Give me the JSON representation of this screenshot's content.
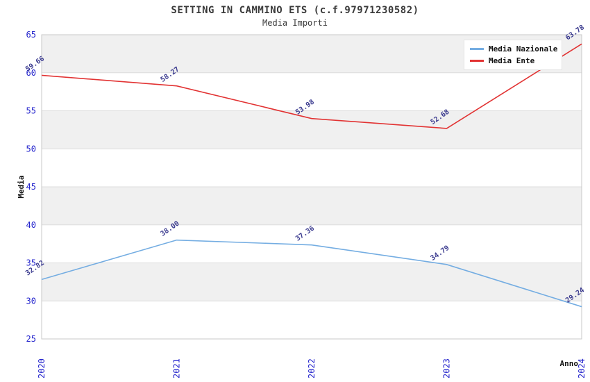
{
  "header": {
    "title": "SETTING IN CAMMINO ETS (c.f.97971230582)",
    "subtitle": "Media Importi"
  },
  "chart_data": {
    "type": "line",
    "categories": [
      "2020",
      "2021",
      "2022",
      "2023",
      "2024"
    ],
    "series": [
      {
        "name": "Media Nazionale",
        "color": "#74ade2",
        "values": [
          32.82,
          38.0,
          37.36,
          34.79,
          29.24
        ]
      },
      {
        "name": "Media Ente",
        "color": "#e23333",
        "values": [
          59.66,
          58.27,
          53.98,
          52.68,
          63.78
        ]
      }
    ],
    "xlabel": "Anno",
    "ylabel": "Media",
    "ylim": [
      25,
      65
    ],
    "ytick_step": 5,
    "yticks": [
      25,
      30,
      35,
      40,
      45,
      50,
      55,
      60,
      65
    ],
    "grid": true,
    "legend_position": "top-right",
    "colors": {
      "tick_label": "#2222cc",
      "data_label": "#3b3b8f",
      "band_gray": "#f0f0f0",
      "band_white": "#ffffff",
      "gridline": "#dcdcdc",
      "plot_border": "#c8c8c8",
      "axis_title": "#111111"
    }
  }
}
